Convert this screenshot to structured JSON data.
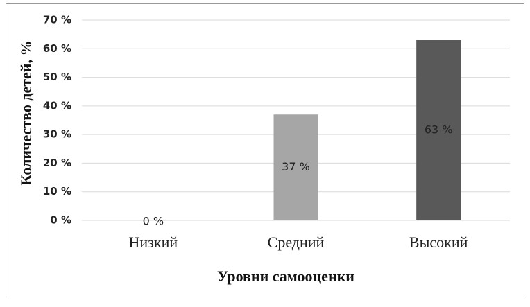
{
  "chart_data": {
    "type": "bar",
    "x_label": "Уровни самооценки",
    "y_label": "Количество детей, %",
    "categories": [
      "Низкий",
      "Средний",
      "Высокий"
    ],
    "values": [
      0,
      37,
      63
    ],
    "value_labels": [
      "0 %",
      "37 %",
      "63 %"
    ],
    "colors": [
      "#7f7f7f",
      "#a6a6a6",
      "#595959"
    ],
    "ylim": [
      0,
      70
    ],
    "yticks": [
      {
        "value": 0,
        "label": "0 %"
      },
      {
        "value": 10,
        "label": "10 %"
      },
      {
        "value": 20,
        "label": "20 %"
      },
      {
        "value": 30,
        "label": "30 %"
      },
      {
        "value": 40,
        "label": "40 %"
      },
      {
        "value": 50,
        "label": "50 %"
      },
      {
        "value": 60,
        "label": "60 %"
      },
      {
        "value": 70,
        "label": "70 %"
      }
    ],
    "grid": true
  }
}
